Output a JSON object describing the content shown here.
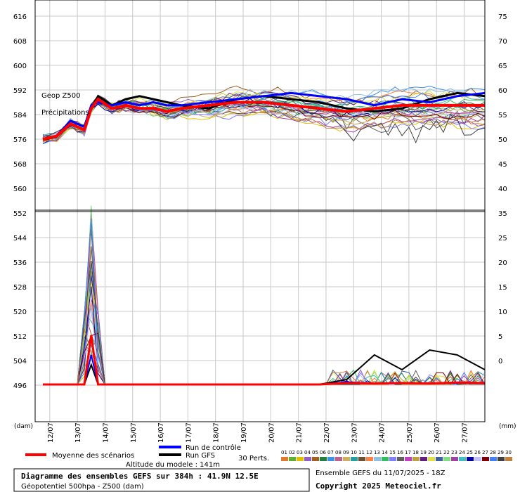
{
  "chart_data": {
    "type": "line",
    "annotations": {
      "geop": "Geop Z500",
      "precip": "Précipitations",
      "left_unit": "(dam)",
      "right_unit": "(mm)"
    },
    "axes": {
      "left_top": {
        "ticks": [
          "616",
          "608",
          "600",
          "592",
          "584",
          "576",
          "568",
          "560",
          "552"
        ],
        "ylim": [
          552,
          616
        ]
      },
      "left_bottom": {
        "ticks": [
          "544",
          "536",
          "528",
          "520",
          "512",
          "504",
          "496"
        ]
      },
      "right_top": {
        "ticks": [
          "75",
          "70",
          "65",
          "60",
          "55",
          "50",
          "45",
          "40",
          "35"
        ],
        "ylim": [
          35,
          75
        ]
      },
      "right_bottom": {
        "ticks": [
          "30",
          "25",
          "20",
          "15",
          "10",
          "5",
          "0"
        ],
        "ylim": [
          0,
          35
        ]
      },
      "x": {
        "ticks": [
          "12/07",
          "13/07",
          "14/07",
          "15/07",
          "16/07",
          "17/07",
          "18/07",
          "19/07",
          "20/07",
          "21/07",
          "22/07",
          "23/07",
          "24/07",
          "25/07",
          "26/07",
          "27/07"
        ],
        "xlim": [
          0,
          384
        ],
        "unit": "hours"
      }
    },
    "series_colors": {
      "mean": "#ff0000",
      "control": "#0000ff",
      "gfs": "#000000",
      "perturbations": [
        "#e07a30",
        "#60b030",
        "#e0c000",
        "#9060c0",
        "#a06020",
        "#208040",
        "#4090e0",
        "#c06090",
        "#d0b060",
        "#20a0a0",
        "#705030",
        "#ff8040",
        "#90c0e0",
        "#30c060",
        "#8080ff",
        "#606060",
        "#c040c0",
        "#c0a040",
        "#602080",
        "#e0e040",
        "#4060a0",
        "#80e080",
        "#a040a0",
        "#40c0c0",
        "#0000a0",
        "#c0c0ff",
        "#800000",
        "#4080ff",
        "#404040",
        "#c08040"
      ]
    },
    "series": [
      {
        "key": "mean",
        "x": [
          0,
          12,
          24,
          36,
          42,
          48,
          60,
          72,
          84,
          96,
          108,
          120,
          144,
          168,
          192,
          216,
          240,
          264,
          288,
          312,
          336,
          360,
          384
        ],
        "z500": [
          576,
          577,
          581,
          579,
          586,
          589,
          586,
          587,
          586,
          586,
          585,
          586,
          587,
          588,
          588,
          587,
          586,
          585,
          586,
          587,
          587,
          587,
          587
        ],
        "precip": [
          0,
          0,
          0,
          0,
          10,
          0,
          0,
          0,
          0,
          0,
          0,
          0,
          0,
          0,
          0,
          0,
          0,
          0.3,
          0.2,
          0.3,
          0.2,
          0.4,
          0.3
        ]
      },
      {
        "key": "control",
        "x": [
          0,
          12,
          24,
          36,
          42,
          48,
          60,
          72,
          84,
          96,
          108,
          120,
          144,
          168,
          192,
          216,
          240,
          264,
          288,
          312,
          336,
          360,
          384
        ],
        "z500": [
          576,
          577,
          582,
          580,
          587,
          588,
          587,
          588,
          587,
          588,
          587,
          587,
          588,
          589,
          590,
          591,
          590,
          589,
          587,
          589,
          588,
          590,
          591
        ],
        "precip": [
          0,
          0,
          0,
          0,
          6,
          0,
          0,
          0,
          0,
          0,
          0,
          0,
          0,
          0,
          0,
          0,
          0,
          0.5,
          0.2,
          0.3,
          0.2,
          0.3,
          0.2
        ]
      },
      {
        "key": "gfs",
        "x": [
          0,
          12,
          24,
          36,
          42,
          48,
          60,
          72,
          84,
          96,
          108,
          120,
          144,
          168,
          192,
          216,
          240,
          264,
          288,
          312,
          336,
          360,
          384
        ],
        "z500": [
          576,
          577,
          582,
          580,
          586,
          590,
          587,
          589,
          590,
          589,
          588,
          587,
          586,
          589,
          590,
          589,
          588,
          586,
          585,
          586,
          589,
          591,
          590
        ],
        "precip": [
          0,
          0,
          0,
          0,
          4,
          0,
          0,
          0,
          0,
          0,
          0,
          0,
          0,
          0,
          0,
          0,
          0,
          1,
          6,
          3,
          7,
          6,
          3
        ]
      }
    ]
  },
  "legend": {
    "mean_label": "Moyenne des scénarios",
    "control_label": "Run de contrôle",
    "gfs_label": "Run GFS",
    "perts_label": "30 Perts.",
    "altitude": "Altitude du modele : 141m",
    "pert_numbers": [
      "01",
      "02",
      "03",
      "04",
      "05",
      "06",
      "07",
      "08",
      "09",
      "10",
      "11",
      "12",
      "13",
      "14",
      "15",
      "16",
      "17",
      "18",
      "19",
      "20",
      "21",
      "22",
      "23",
      "24",
      "25",
      "26",
      "27",
      "28",
      "29",
      "30"
    ]
  },
  "footer": {
    "title": "Diagramme des ensembles GEFS sur 384h : 41.9N 12.5E",
    "subtitle": "Géopotentiel 500hpa - Z500 (dam)",
    "run_info": "Ensemble GEFS du 11/07/2025 - 18Z",
    "copyright": "Copyright 2025 Meteociel.fr"
  }
}
